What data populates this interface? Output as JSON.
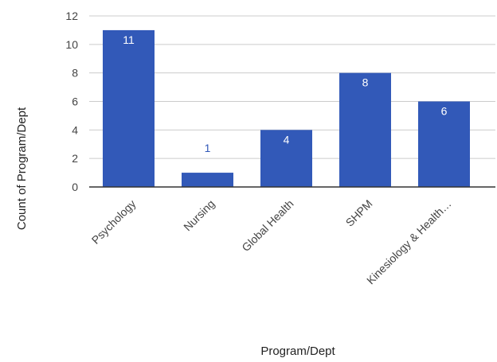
{
  "chart_data": {
    "type": "bar",
    "categories": [
      "Psychology",
      "Nursing",
      "Global Health",
      "SHPM",
      "Kinesiology & Health…"
    ],
    "values": [
      11,
      1,
      4,
      8,
      6
    ],
    "xlabel": "Program/Dept",
    "ylabel": "Count of Program/Dept",
    "ylim": [
      0,
      12
    ],
    "yticks": [
      0,
      2,
      4,
      6,
      8,
      10,
      12
    ],
    "grid": true,
    "legend": "none",
    "data_labels": true
  },
  "colors": {
    "bar": "#3259b8",
    "label_inside": "#ffffff",
    "label_outside": "#3259b8",
    "grid": "#cccccc",
    "baseline": "#333333"
  }
}
